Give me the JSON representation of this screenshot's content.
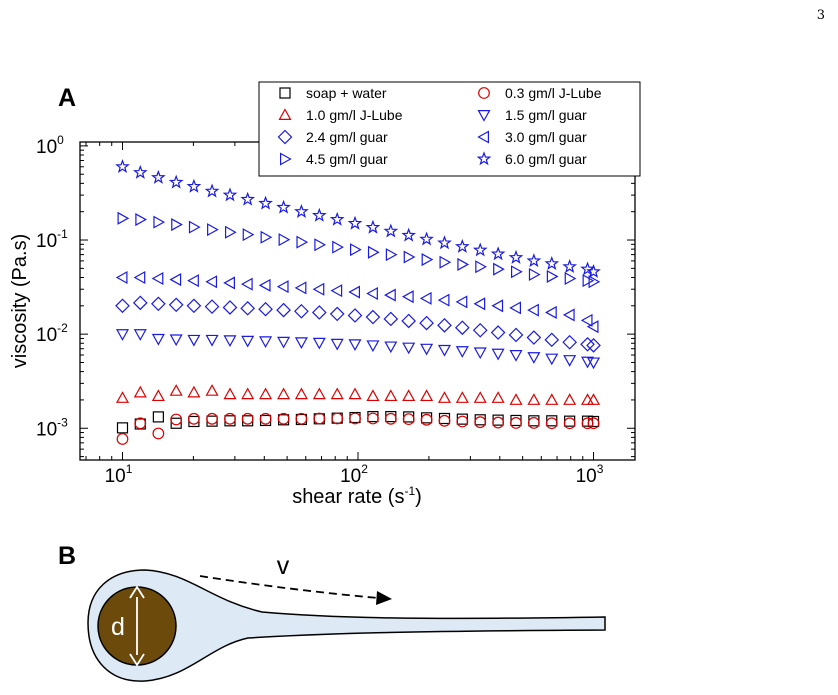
{
  "page_number": "3",
  "panel_a_label": "A",
  "panel_b_label": "B",
  "colors": {
    "black": "#000000",
    "red": "#dd0000",
    "blue": "#1a1ae6",
    "drop_fill": "#dde9f5",
    "drop_core": "#6b4a0c"
  },
  "chart_data": {
    "type": "scatter",
    "x_scale": "log",
    "y_scale": "log",
    "xlabel": "shear rate (s",
    "xlabel_exp": "-1",
    "xlabel_close": ")",
    "ylabel": "viscosity (Pa.s)",
    "xlim": [
      6.6,
      1500
    ],
    "ylim": [
      0.00046,
      1.1
    ],
    "x_ticks": [
      {
        "base": "10",
        "exp": "1"
      },
      {
        "base": "10",
        "exp": "2"
      },
      {
        "base": "10",
        "exp": "3"
      }
    ],
    "y_ticks": [
      {
        "base": "10",
        "exp": "0"
      },
      {
        "base": "10",
        "exp": "-1"
      },
      {
        "base": "10",
        "exp": "-2"
      },
      {
        "base": "10",
        "exp": "-3"
      }
    ],
    "legend_position": "top-right",
    "x": [
      10,
      11.9,
      14.2,
      16.9,
      20.1,
      24,
      28.6,
      34,
      40.5,
      48.3,
      57.5,
      68.5,
      81.6,
      97.1,
      115.7,
      137.8,
      164.1,
      195.5,
      232.9,
      277.3,
      330.3,
      393.4,
      468.6,
      558.1,
      664.8,
      791.8,
      943.1,
      1000
    ],
    "series": [
      {
        "name": "soap + water",
        "marker": "square",
        "color": "black",
        "values": [
          0.00101,
          0.00111,
          0.00132,
          0.00113,
          0.00118,
          0.00119,
          0.0012,
          0.0012,
          0.00121,
          0.00123,
          0.00124,
          0.00126,
          0.00128,
          0.0013,
          0.00133,
          0.00133,
          0.00132,
          0.00129,
          0.00127,
          0.00125,
          0.00123,
          0.00122,
          0.00121,
          0.0012,
          0.0012,
          0.00119,
          0.00119,
          0.00118
        ]
      },
      {
        "name": "0.3 gm/l J-Lube",
        "marker": "circle",
        "color": "red",
        "values": [
          0.00077,
          0.00113,
          0.00088,
          0.00124,
          0.00126,
          0.00126,
          0.00126,
          0.00126,
          0.00126,
          0.00126,
          0.00126,
          0.00127,
          0.00127,
          0.00127,
          0.00127,
          0.00126,
          0.00125,
          0.00123,
          0.0012,
          0.00118,
          0.00116,
          0.00115,
          0.00114,
          0.00114,
          0.00113,
          0.00113,
          0.00113,
          0.00113
        ]
      },
      {
        "name": "1.0 gm/l J-Lube",
        "marker": "triangle-up",
        "color": "red",
        "values": [
          0.0021,
          0.0024,
          0.0022,
          0.0025,
          0.0024,
          0.0025,
          0.0023,
          0.0023,
          0.0023,
          0.0023,
          0.0023,
          0.0023,
          0.0023,
          0.0023,
          0.0022,
          0.0022,
          0.0022,
          0.0022,
          0.0021,
          0.0021,
          0.0021,
          0.0021,
          0.002,
          0.002,
          0.002,
          0.002,
          0.002,
          0.002
        ]
      },
      {
        "name": "1.5 gm/l guar",
        "marker": "triangle-down",
        "color": "blue",
        "values": [
          0.01,
          0.01,
          0.0089,
          0.0088,
          0.0087,
          0.0087,
          0.0086,
          0.0085,
          0.0084,
          0.0083,
          0.0082,
          0.0081,
          0.0079,
          0.0078,
          0.0076,
          0.0074,
          0.0072,
          0.007,
          0.0068,
          0.0066,
          0.0064,
          0.0062,
          0.006,
          0.0057,
          0.0055,
          0.0053,
          0.0051,
          0.005
        ]
      },
      {
        "name": "2.4 gm/l guar",
        "marker": "diamond",
        "color": "blue",
        "values": [
          0.02,
          0.0215,
          0.021,
          0.0205,
          0.02,
          0.0196,
          0.0192,
          0.0188,
          0.0184,
          0.018,
          0.0175,
          0.017,
          0.0164,
          0.0158,
          0.0152,
          0.0145,
          0.0138,
          0.0131,
          0.0124,
          0.0117,
          0.011,
          0.0104,
          0.0098,
          0.0092,
          0.0087,
          0.0082,
          0.0078,
          0.0076
        ]
      },
      {
        "name": "3.0 gm/l guar",
        "marker": "triangle-left",
        "color": "blue",
        "values": [
          0.04,
          0.04,
          0.039,
          0.038,
          0.037,
          0.036,
          0.035,
          0.034,
          0.033,
          0.032,
          0.031,
          0.03,
          0.029,
          0.028,
          0.027,
          0.026,
          0.025,
          0.024,
          0.023,
          0.022,
          0.021,
          0.02,
          0.019,
          0.018,
          0.017,
          0.016,
          0.014,
          0.012
        ]
      },
      {
        "name": "4.5 gm/l guar",
        "marker": "triangle-right",
        "color": "blue",
        "values": [
          0.17,
          0.165,
          0.155,
          0.146,
          0.137,
          0.129,
          0.121,
          0.114,
          0.107,
          0.101,
          0.095,
          0.089,
          0.084,
          0.079,
          0.074,
          0.07,
          0.066,
          0.062,
          0.058,
          0.055,
          0.052,
          0.049,
          0.046,
          0.043,
          0.041,
          0.039,
          0.037,
          0.036
        ]
      },
      {
        "name": "6.0 gm/l guar",
        "marker": "star",
        "color": "blue",
        "values": [
          0.6,
          0.52,
          0.46,
          0.41,
          0.37,
          0.33,
          0.3,
          0.27,
          0.245,
          0.222,
          0.2,
          0.182,
          0.165,
          0.15,
          0.136,
          0.124,
          0.112,
          0.102,
          0.093,
          0.085,
          0.078,
          0.071,
          0.065,
          0.06,
          0.056,
          0.052,
          0.049,
          0.046
        ]
      }
    ]
  },
  "diagram": {
    "diameter_label": "d",
    "velocity_label": "v"
  }
}
